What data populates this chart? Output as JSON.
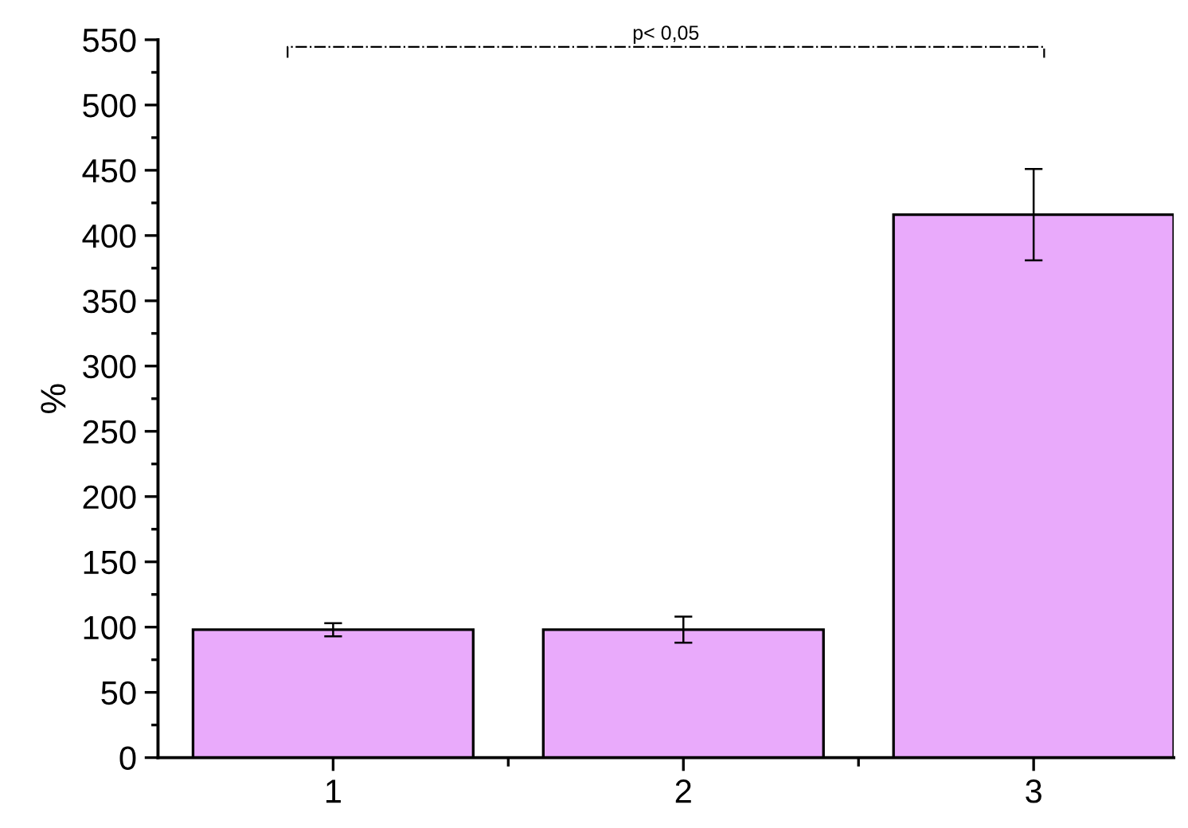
{
  "chart_data": {
    "type": "bar",
    "ylabel": "%",
    "categories": [
      "1",
      "2",
      "3"
    ],
    "values": [
      98,
      98,
      416
    ],
    "errors": [
      5,
      10,
      35
    ],
    "color": "#e9aafb",
    "ylim": [
      0,
      550
    ],
    "yticks": [
      0,
      50,
      100,
      150,
      200,
      250,
      300,
      350,
      400,
      450,
      500,
      550
    ],
    "grid": false,
    "annotations": [
      "p< 0,05"
    ]
  }
}
